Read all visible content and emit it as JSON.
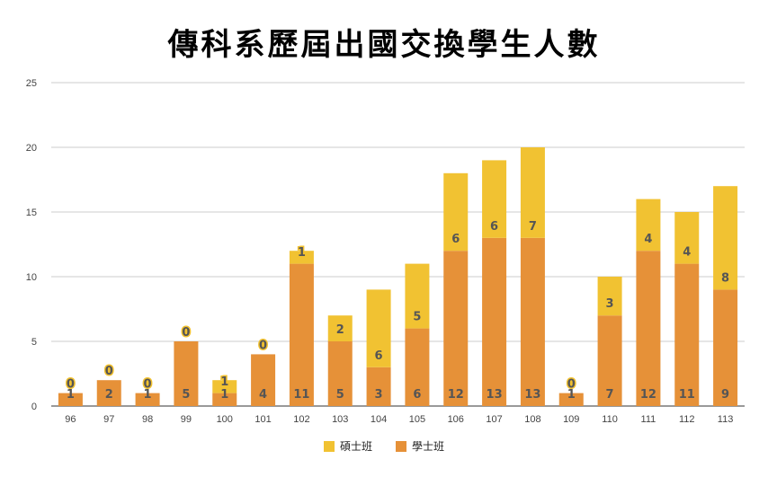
{
  "chart_data": {
    "type": "bar",
    "stacked": true,
    "title": "傳科系歷屆出國交換學生人數",
    "categories": [
      "96",
      "97",
      "98",
      "99",
      "100",
      "101",
      "102",
      "103",
      "104",
      "105",
      "106",
      "107",
      "108",
      "109",
      "110",
      "111",
      "112",
      "113"
    ],
    "series": [
      {
        "name": "學士班",
        "color": "#e69138",
        "values": [
          1,
          2,
          1,
          5,
          1,
          4,
          11,
          5,
          3,
          6,
          12,
          13,
          13,
          1,
          7,
          12,
          11,
          9
        ]
      },
      {
        "name": "碩士班",
        "color": "#f1c232",
        "values": [
          0,
          0,
          0,
          0,
          1,
          0,
          1,
          2,
          6,
          5,
          6,
          6,
          7,
          0,
          3,
          4,
          4,
          8
        ]
      }
    ],
    "ylim": [
      0,
      25
    ],
    "yticks": [
      "0",
      "5",
      "10",
      "15",
      "20",
      "25"
    ],
    "grid": true,
    "legend_position": "bottom",
    "legend_order": [
      "碩士班",
      "學士班"
    ]
  }
}
